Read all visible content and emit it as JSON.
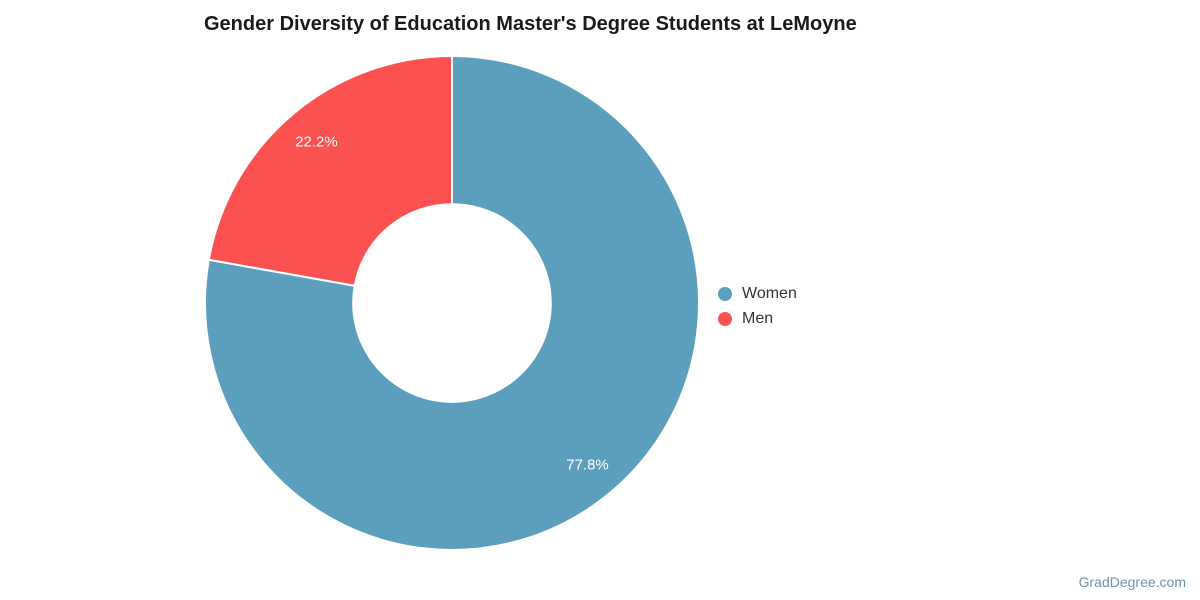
{
  "chart_data": {
    "type": "pie",
    "subtype": "donut",
    "title": "Gender Diversity of Education Master's Degree Students at LeMoyne",
    "categories": [
      "Women",
      "Men"
    ],
    "values": [
      77.8,
      22.2
    ],
    "slice_labels": [
      "77.8%",
      "22.2%"
    ],
    "colors": [
      "#5B9FBC",
      "#FC5151"
    ],
    "slice_label_color": "#FFFFFF",
    "slice_border_color": "#FFFFFF",
    "start_angle_deg": 0,
    "direction": "clockwise",
    "donut_hole_ratio": 0.4,
    "legend_position": "right"
  },
  "legend": {
    "items": [
      {
        "label": "Women"
      },
      {
        "label": "Men"
      }
    ]
  },
  "watermark": {
    "text": "GradDegree.com"
  }
}
